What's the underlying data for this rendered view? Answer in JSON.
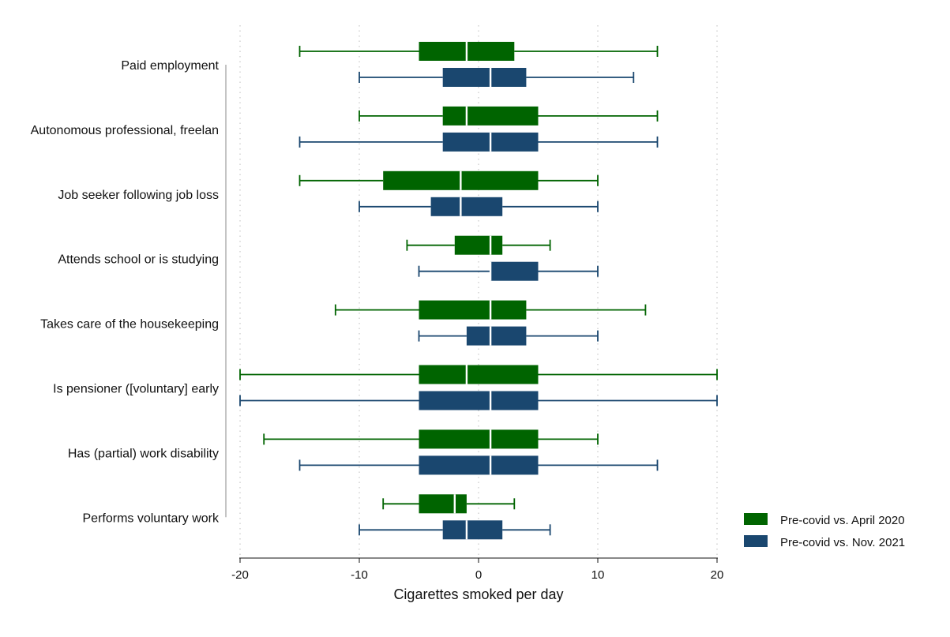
{
  "chart_data": {
    "type": "boxplot",
    "orientation": "horizontal",
    "title": "",
    "xlabel": "Cigarettes smoked per day",
    "ylabel": "",
    "xlim": [
      -20,
      20
    ],
    "xticks": [
      -20,
      -10,
      0,
      10,
      20
    ],
    "xtick_labels": [
      "-20",
      "-10",
      "0",
      "10",
      "20"
    ],
    "grid": "vertical dotted",
    "legend_position": "bottom-right",
    "categories": [
      "Paid employment",
      "Autonomous professional, freelan",
      "Job seeker following job loss",
      "Attends school or is studying",
      "Takes care of the housekeeping",
      "Is pensioner ([voluntary] early",
      "Has (partial) work disability",
      "Performs voluntary work"
    ],
    "series": [
      {
        "name": "Pre-covid vs. April 2020",
        "color": "#006400",
        "boxes": [
          {
            "whisker_low": -15,
            "q1": -5,
            "median": -1,
            "q3": 3,
            "whisker_high": 15
          },
          {
            "whisker_low": -10,
            "q1": -3,
            "median": -1,
            "q3": 5,
            "whisker_high": 15
          },
          {
            "whisker_low": -15,
            "q1": -8,
            "median": -1.5,
            "q3": 5,
            "whisker_high": 10
          },
          {
            "whisker_low": -6,
            "q1": -2,
            "median": 1,
            "q3": 2,
            "whisker_high": 6
          },
          {
            "whisker_low": -12,
            "q1": -5,
            "median": 1,
            "q3": 4,
            "whisker_high": 14
          },
          {
            "whisker_low": -20,
            "q1": -5,
            "median": -1,
            "q3": 5,
            "whisker_high": 20
          },
          {
            "whisker_low": -18,
            "q1": -5,
            "median": 1,
            "q3": 5,
            "whisker_high": 10
          },
          {
            "whisker_low": -8,
            "q1": -5,
            "median": -2,
            "q3": -1,
            "whisker_high": 3
          }
        ]
      },
      {
        "name": "Pre-covid vs. Nov. 2021",
        "color": "#1a476f",
        "boxes": [
          {
            "whisker_low": -10,
            "q1": -3,
            "median": 1,
            "q3": 4,
            "whisker_high": 13
          },
          {
            "whisker_low": -15,
            "q1": -3,
            "median": 1,
            "q3": 5,
            "whisker_high": 15
          },
          {
            "whisker_low": -10,
            "q1": -4,
            "median": -1.5,
            "q3": 2,
            "whisker_high": 10
          },
          {
            "whisker_low": -5,
            "q1": 1,
            "median": 1,
            "q3": 5,
            "whisker_high": 10
          },
          {
            "whisker_low": -5,
            "q1": -1,
            "median": 1,
            "q3": 4,
            "whisker_high": 10
          },
          {
            "whisker_low": -20,
            "q1": -5,
            "median": 1,
            "q3": 5,
            "whisker_high": 20
          },
          {
            "whisker_low": -15,
            "q1": -5,
            "median": 1,
            "q3": 5,
            "whisker_high": 15
          },
          {
            "whisker_low": -10,
            "q1": -3,
            "median": -1,
            "q3": 2,
            "whisker_high": 6
          }
        ]
      }
    ]
  }
}
